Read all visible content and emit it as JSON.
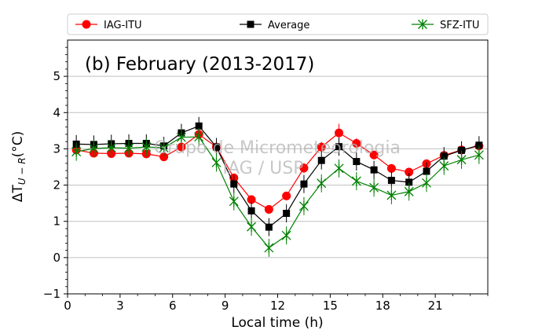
{
  "chart_data": {
    "type": "line",
    "title": "(b) February (2013-2017)",
    "xlabel": "Local time (h)",
    "ylabel": "ΔT",
    "ylabel_subscript": "U − R",
    "ylabel_unit": "(°C)",
    "xlim": [
      0,
      24
    ],
    "ylim": [
      -1,
      6
    ],
    "xticks": [
      0,
      3,
      6,
      9,
      12,
      15,
      18,
      21
    ],
    "yticks": [
      -1,
      0,
      1,
      2,
      3,
      4,
      5
    ],
    "grid": "horizontal",
    "legend_position": "top",
    "watermark_lines": [
      "Grupo de Micrometeorologia",
      "IAG / USP"
    ],
    "x": [
      0.5,
      1.5,
      2.5,
      3.5,
      4.5,
      5.5,
      6.5,
      7.5,
      8.5,
      9.5,
      10.5,
      11.5,
      12.5,
      13.5,
      14.5,
      15.5,
      16.5,
      17.5,
      18.5,
      19.5,
      20.5,
      21.5,
      22.5,
      23.5
    ],
    "series": [
      {
        "name": "IAG-ITU",
        "color": "#ff0000",
        "marker": "circle",
        "values": [
          2.97,
          2.88,
          2.87,
          2.88,
          2.86,
          2.78,
          3.05,
          3.4,
          3.05,
          2.2,
          1.6,
          1.33,
          1.7,
          2.47,
          3.05,
          3.44,
          3.15,
          2.83,
          2.46,
          2.36,
          2.59,
          2.82,
          2.97,
          3.08
        ],
        "errors": [
          0.12,
          0.12,
          0.12,
          0.12,
          0.12,
          0.12,
          0.12,
          0.14,
          0.12,
          0.12,
          0.12,
          0.12,
          0.12,
          0.14,
          0.14,
          0.25,
          0.14,
          0.12,
          0.12,
          0.12,
          0.12,
          0.12,
          0.12,
          0.12
        ]
      },
      {
        "name": "Average",
        "color": "#000000",
        "marker": "square",
        "values": [
          3.13,
          3.12,
          3.14,
          3.15,
          3.15,
          3.08,
          3.44,
          3.63,
          3.05,
          2.03,
          1.29,
          0.84,
          1.22,
          2.03,
          2.68,
          3.06,
          2.65,
          2.42,
          2.13,
          2.08,
          2.38,
          2.8,
          2.96,
          3.1
        ],
        "errors": [
          0.25,
          0.25,
          0.25,
          0.25,
          0.25,
          0.25,
          0.25,
          0.25,
          0.25,
          0.25,
          0.25,
          0.25,
          0.25,
          0.25,
          0.25,
          0.25,
          0.25,
          0.25,
          0.25,
          0.25,
          0.25,
          0.25,
          0.25,
          0.25
        ]
      },
      {
        "name": "SFZ-ITU",
        "color": "#008000",
        "marker": "x-star",
        "values": [
          2.92,
          3.01,
          3.03,
          3.02,
          3.05,
          3.03,
          3.32,
          3.33,
          2.62,
          1.55,
          0.85,
          0.27,
          0.61,
          1.42,
          2.05,
          2.46,
          2.11,
          1.93,
          1.72,
          1.82,
          2.06,
          2.53,
          2.7,
          2.83
        ],
        "errors": [
          0.25,
          0.25,
          0.25,
          0.25,
          0.25,
          0.25,
          0.25,
          0.25,
          0.25,
          0.25,
          0.25,
          0.25,
          0.25,
          0.25,
          0.25,
          0.25,
          0.25,
          0.25,
          0.25,
          0.25,
          0.25,
          0.25,
          0.25,
          0.25
        ]
      }
    ]
  }
}
